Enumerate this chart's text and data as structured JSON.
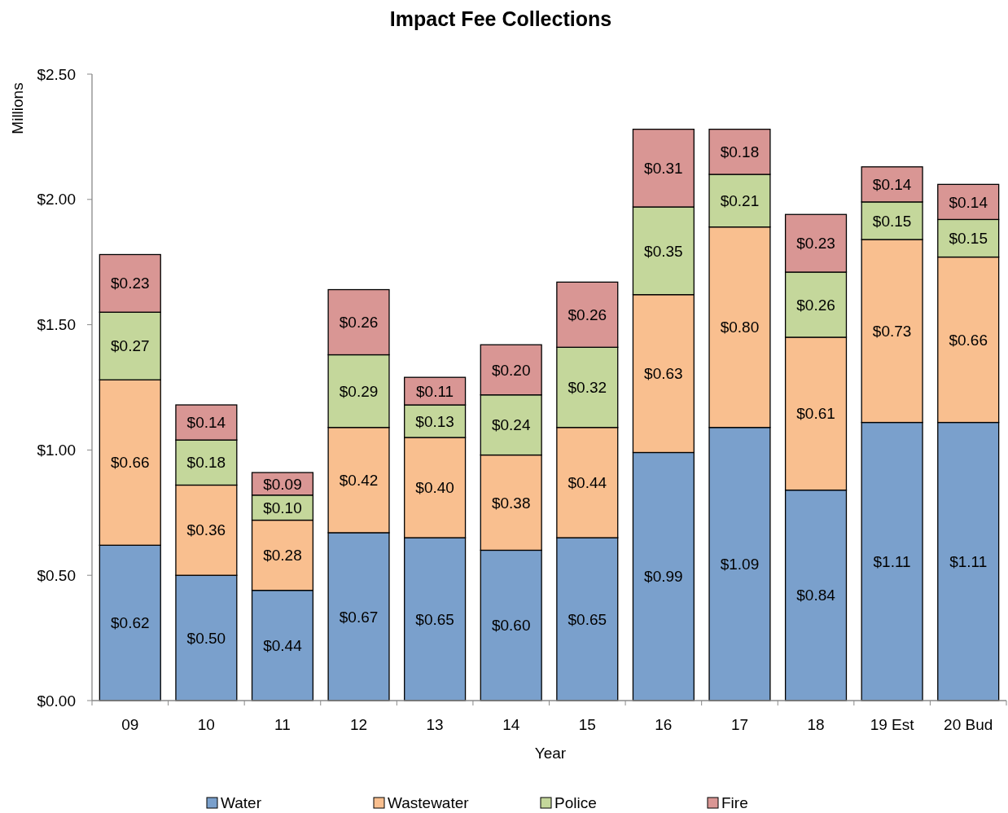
{
  "chart_data": {
    "type": "bar",
    "title": "Impact Fee Collections",
    "xlabel": "Year",
    "ylabel": "Millions",
    "stacked": true,
    "legend": "bottom",
    "grid": false,
    "categories": [
      "09",
      "10",
      "11",
      "12",
      "13",
      "14",
      "15",
      "16",
      "17",
      "18",
      "19 Est",
      "20 Bud"
    ],
    "ylim": [
      0,
      2.5
    ],
    "yticks": [
      {
        "value": 0,
        "label": "$0.00"
      },
      {
        "value": 0.5,
        "label": "$0.50"
      },
      {
        "value": 1,
        "label": "$1.00"
      },
      {
        "value": 1.5,
        "label": "$1.50"
      },
      {
        "value": 2,
        "label": "$2.00"
      },
      {
        "value": 2.5,
        "label": "$2.50"
      }
    ],
    "series": [
      {
        "name": "Water",
        "color": "#7aa0cc",
        "values": [
          0.62,
          0.5,
          0.44,
          0.67,
          0.65,
          0.6,
          0.65,
          0.99,
          1.09,
          0.84,
          1.11,
          1.11
        ],
        "value_labels": [
          "$0.62",
          "$0.50",
          "$0.44",
          "$0.67",
          "$0.65",
          "$0.60",
          "$0.65",
          "$0.99",
          "$1.09",
          "$0.84",
          "$1.11",
          "$1.11"
        ]
      },
      {
        "name": "Wastewater",
        "color": "#f9bf8f",
        "values": [
          0.66,
          0.36,
          0.28,
          0.42,
          0.4,
          0.38,
          0.44,
          0.63,
          0.8,
          0.61,
          0.73,
          0.66
        ],
        "value_labels": [
          "$0.66",
          "$0.36",
          "$0.28",
          "$0.42",
          "$0.40",
          "$0.38",
          "$0.44",
          "$0.63",
          "$0.80",
          "$0.61",
          "$0.73",
          "$0.66"
        ]
      },
      {
        "name": "Police",
        "color": "#c4d79b",
        "values": [
          0.27,
          0.18,
          0.1,
          0.29,
          0.13,
          0.24,
          0.32,
          0.35,
          0.21,
          0.26,
          0.15,
          0.15
        ],
        "value_labels": [
          "$0.27",
          "$0.18",
          "$0.10",
          "$0.29",
          "$0.13",
          "$0.24",
          "$0.32",
          "$0.35",
          "$0.21",
          "$0.26",
          "$0.15",
          "$0.15"
        ]
      },
      {
        "name": "Fire",
        "color": "#d99694",
        "values": [
          0.23,
          0.14,
          0.09,
          0.26,
          0.11,
          0.2,
          0.26,
          0.31,
          0.18,
          0.23,
          0.14,
          0.14
        ],
        "value_labels": [
          "$0.23",
          "$0.14",
          "$0.09",
          "$0.26",
          "$0.11",
          "$0.20",
          "$0.26",
          "$0.31",
          "$0.18",
          "$0.23",
          "$0.14",
          "$0.14"
        ]
      }
    ]
  }
}
